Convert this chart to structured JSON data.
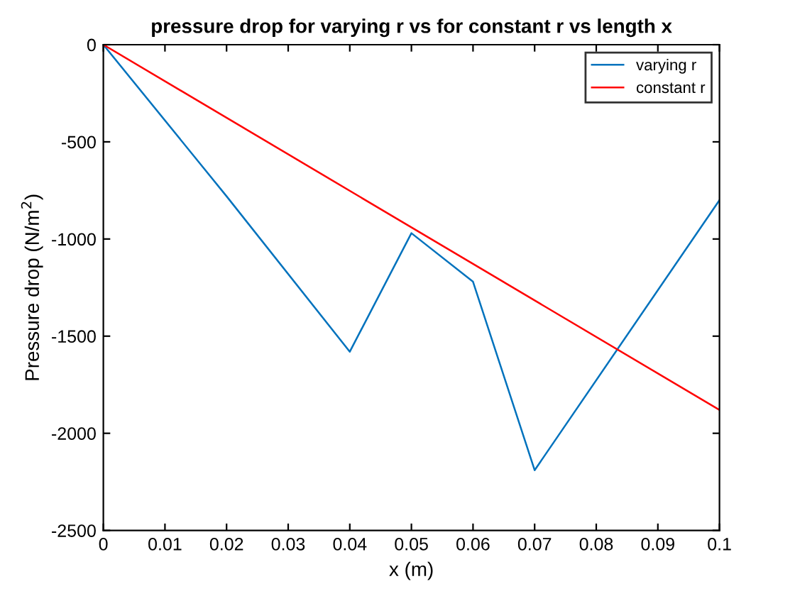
{
  "chart_data": {
    "type": "line",
    "title": "pressure drop for varying r vs for constant r vs length x",
    "xlabel": "x (m)",
    "ylabel": "Pressure drop (N/m$^{2}$)",
    "series": [
      {
        "name": "varying r",
        "color": "#0072bd",
        "x": [
          0,
          0.02,
          0.04,
          0.05,
          0.06,
          0.07,
          0.1
        ],
        "values": [
          0,
          -780,
          -1580,
          -970,
          -1220,
          -2190,
          -800
        ]
      },
      {
        "name": "constant r",
        "color": "#ff0000",
        "x": [
          0,
          0.1
        ],
        "values": [
          0,
          -1880
        ]
      }
    ],
    "xlim": [
      0,
      0.1
    ],
    "xticks": [
      0,
      0.01,
      0.02,
      0.03,
      0.04,
      0.05,
      0.06,
      0.07,
      0.08,
      0.09,
      0.1
    ],
    "ylim": [
      -2500,
      0
    ],
    "yticks": [
      -2500,
      -2000,
      -1500,
      -1000,
      -500,
      0
    ],
    "grid": false,
    "legend": "top right"
  }
}
